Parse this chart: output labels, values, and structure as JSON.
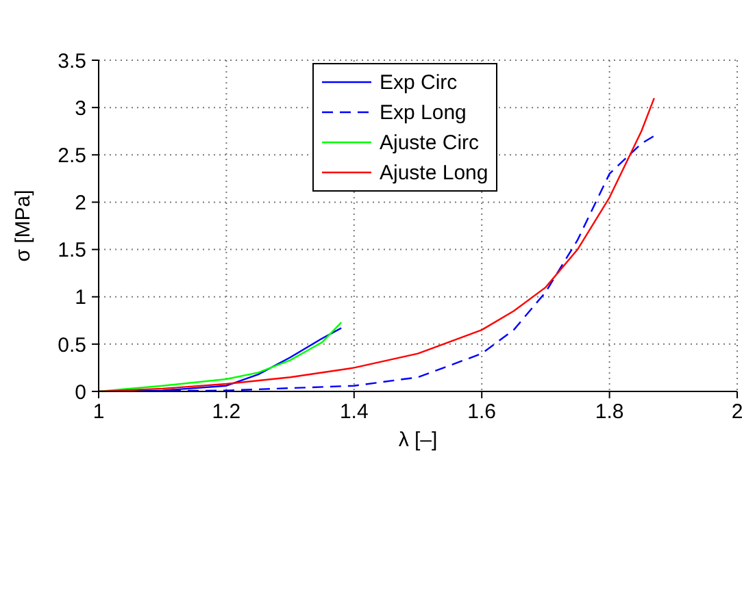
{
  "chart_data": {
    "type": "line",
    "xlabel": "λ [–]",
    "ylabel": "σ [MPa]",
    "xlim": [
      1,
      2
    ],
    "ylim": [
      0,
      3.5
    ],
    "xticks": [
      1,
      1.2,
      1.4,
      1.6,
      1.8,
      2
    ],
    "yticks": [
      0,
      0.5,
      1,
      1.5,
      2,
      2.5,
      3,
      3.5
    ],
    "grid": true,
    "legend": "top",
    "marker": "none",
    "series": [
      {
        "name": "Exp Circ",
        "color": "#0000ff",
        "line_style": "solid",
        "x": [
          1,
          1.1,
          1.2,
          1.25,
          1.3,
          1.35,
          1.38
        ],
        "values": [
          0,
          0.01,
          0.06,
          0.18,
          0.36,
          0.56,
          0.67
        ]
      },
      {
        "name": "Exp Long",
        "color": "#0000ff",
        "line_style": "dashed",
        "x": [
          1,
          1.2,
          1.4,
          1.5,
          1.6,
          1.65,
          1.7,
          1.75,
          1.8,
          1.85,
          1.87
        ],
        "values": [
          0,
          0.01,
          0.06,
          0.15,
          0.4,
          0.65,
          1.05,
          1.6,
          2.3,
          2.62,
          2.7
        ]
      },
      {
        "name": "Ajuste Circ",
        "color": "#00ff00",
        "line_style": "solid",
        "x": [
          1,
          1.1,
          1.2,
          1.25,
          1.3,
          1.35,
          1.38
        ],
        "values": [
          0,
          0.06,
          0.13,
          0.2,
          0.33,
          0.52,
          0.73
        ]
      },
      {
        "name": "Ajuste Long",
        "color": "#ff0000",
        "line_style": "solid",
        "x": [
          1,
          1.1,
          1.2,
          1.3,
          1.4,
          1.5,
          1.6,
          1.65,
          1.7,
          1.75,
          1.8,
          1.85,
          1.87
        ],
        "values": [
          0,
          0.03,
          0.08,
          0.15,
          0.25,
          0.4,
          0.65,
          0.85,
          1.1,
          1.5,
          2.05,
          2.75,
          3.1
        ]
      }
    ]
  }
}
